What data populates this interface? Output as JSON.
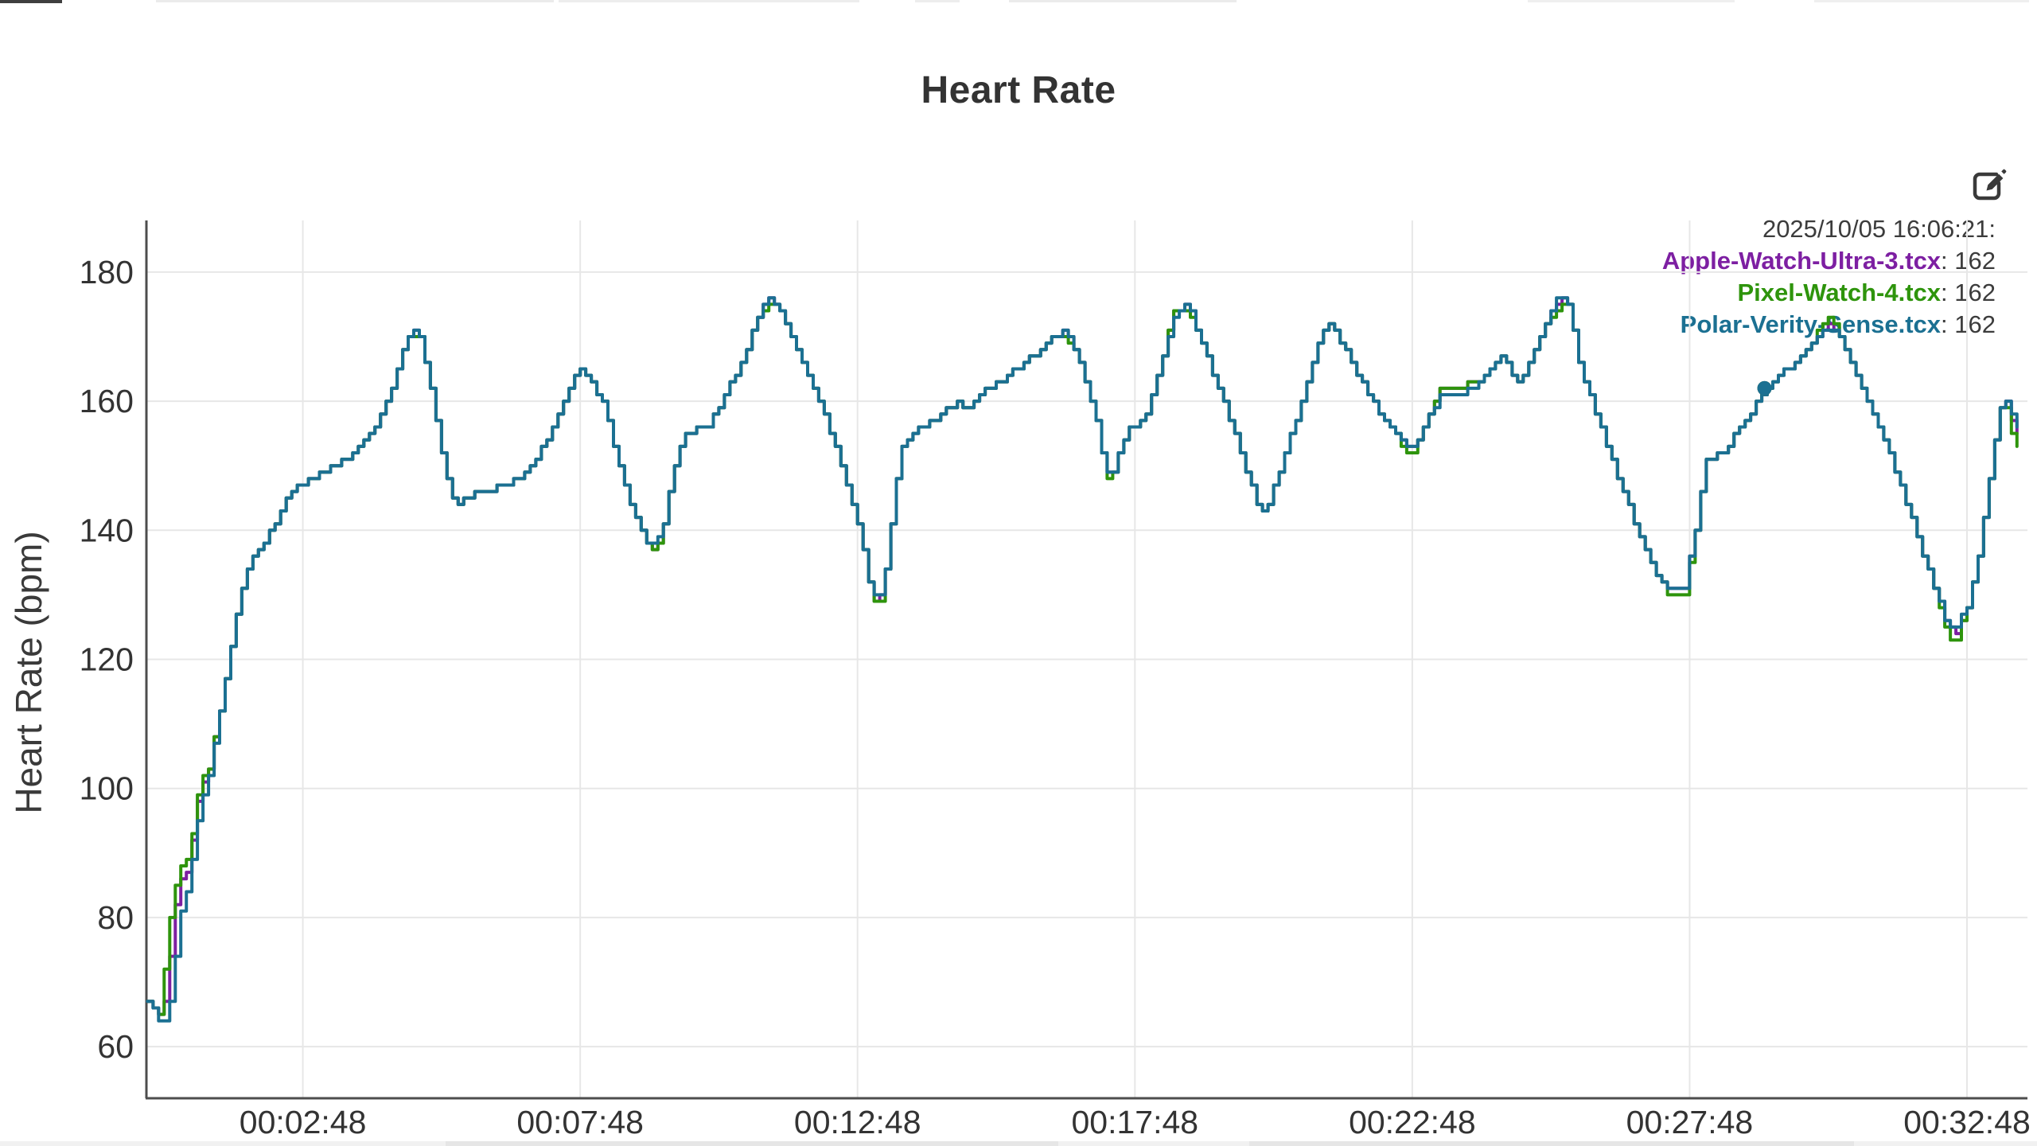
{
  "chart": {
    "title": "Heart Rate",
    "legend": {
      "timestamp": "2025/10/05 16:06:21:",
      "entries": [
        {
          "label": "Apple-Watch-Ultra-3.tcx",
          "value": "162",
          "color": "#7d1fa2"
        },
        {
          "label": "Pixel-Watch-4.tcx",
          "value": "162",
          "color": "#2e940c"
        },
        {
          "label": "Polar-Verity-Sense.tcx",
          "value": "162",
          "color": "#1b7092"
        }
      ],
      "separator": ": "
    },
    "toolbar": {
      "edit_icon": "edit-icon"
    },
    "cursor": {
      "t_seconds": 1749,
      "value": 162,
      "dot_color": "#1b7092"
    }
  },
  "chart_data": {
    "type": "line",
    "title": "Heart Rate",
    "xlabel": "",
    "ylabel": "Heart Rate (bpm)",
    "x_unit": "elapsed time (hh:mm:ss)",
    "y_unit": "bpm",
    "xlim_minutes": [
      -0.02,
      33.89
    ],
    "ylim": [
      52,
      188
    ],
    "grid": true,
    "legend_position": "top-right",
    "y_ticks": [
      180,
      160,
      140,
      120,
      100,
      80,
      60
    ],
    "x_ticks": [
      {
        "label": "00:02:48",
        "minutes": 2.8
      },
      {
        "label": "00:07:48",
        "minutes": 7.8
      },
      {
        "label": "00:12:48",
        "minutes": 12.8
      },
      {
        "label": "00:17:48",
        "minutes": 17.8
      },
      {
        "label": "00:22:48",
        "minutes": 22.8
      },
      {
        "label": "00:27:48",
        "minutes": 27.8
      },
      {
        "label": "00:32:48",
        "minutes": 32.8
      }
    ],
    "x_seconds": [
      0,
      12,
      21,
      27,
      36,
      45,
      51,
      57,
      66,
      78,
      90,
      102,
      114,
      126,
      138,
      150,
      159,
      180,
      192,
      216,
      237,
      252,
      267,
      279,
      285,
      294,
      306,
      318,
      327,
      336,
      348,
      360,
      390,
      402,
      423,
      438,
      456,
      465,
      474,
      492,
      510,
      525,
      540,
      549,
      558,
      570,
      579,
      606,
      624,
      642,
      660,
      669,
      681,
      696,
      720,
      744,
      768,
      783,
      790,
      798,
      813,
      828,
      852,
      876,
      885,
      900,
      924,
      948,
      966,
      981,
      993,
      1008,
      1023,
      1035,
      1041,
      1053,
      1062,
      1077,
      1089,
      1101,
      1110,
      1125,
      1140,
      1158,
      1176,
      1191,
      1203,
      1212,
      1230,
      1248,
      1266,
      1275,
      1287,
      1302,
      1320,
      1338,
      1353,
      1365,
      1380,
      1398,
      1416,
      1437,
      1452,
      1464,
      1476,
      1485,
      1500,
      1512,
      1527,
      1536,
      1548,
      1566,
      1590,
      1614,
      1632,
      1644,
      1662,
      1674,
      1686,
      1704,
      1722,
      1737,
      1749,
      1764,
      1782,
      1800,
      1815,
      1827,
      1842,
      1860,
      1878,
      1896,
      1914,
      1932,
      1947,
      1956,
      1968,
      1980,
      1992,
      2001,
      2007,
      2013,
      2022
    ],
    "series": [
      {
        "name": "Apple-Watch-Ultra-3.tcx",
        "color": "#7d1fa2",
        "values": [
          67,
          65,
          68,
          80,
          86,
          88,
          95,
          100,
          103,
          112,
          122,
          131,
          136,
          138,
          141,
          145,
          147,
          148,
          149,
          151,
          154,
          158,
          163,
          169,
          171,
          170,
          162,
          152,
          146,
          144,
          145,
          146,
          147,
          148,
          152,
          156,
          162,
          165,
          164,
          160,
          150,
          143,
          138,
          137,
          141,
          150,
          155,
          156,
          161,
          166,
          173,
          176,
          175,
          170,
          162,
          153,
          141,
          130,
          128,
          134,
          152,
          155,
          157,
          160,
          159,
          161,
          163,
          166,
          168,
          170,
          171,
          166,
          159,
          149,
          148,
          153,
          156,
          157,
          162,
          169,
          174,
          175,
          169,
          162,
          155,
          148,
          143,
          144,
          152,
          160,
          169,
          172,
          170,
          166,
          161,
          157,
          154,
          152,
          156,
          162,
          162,
          163,
          165,
          167,
          164,
          163,
          168,
          172,
          176,
          175,
          166,
          158,
          148,
          139,
          133,
          131,
          131,
          140,
          151,
          152,
          156,
          159,
          162,
          164,
          166,
          169,
          172,
          171,
          166,
          160,
          154,
          147,
          139,
          131,
          125,
          124,
          128,
          136,
          148,
          157,
          161,
          158,
          155
        ]
      },
      {
        "name": "Pixel-Watch-4.tcx",
        "color": "#2e940c",
        "values": [
          67,
          65,
          75,
          84,
          88,
          90,
          96,
          101,
          103,
          112,
          122,
          131,
          136,
          138,
          141,
          145,
          147,
          148,
          149,
          151,
          154,
          158,
          163,
          170,
          170,
          170,
          162,
          152,
          146,
          144,
          145,
          146,
          147,
          148,
          152,
          156,
          162,
          165,
          164,
          160,
          150,
          143,
          138,
          136,
          141,
          150,
          155,
          156,
          161,
          166,
          173,
          175,
          175,
          170,
          162,
          153,
          141,
          130,
          127,
          134,
          152,
          155,
          157,
          160,
          158,
          161,
          163,
          166,
          168,
          170,
          170,
          166,
          159,
          149,
          147,
          153,
          156,
          157,
          162,
          169,
          174,
          174,
          169,
          162,
          155,
          148,
          142,
          144,
          152,
          160,
          169,
          172,
          170,
          166,
          161,
          157,
          154,
          151,
          156,
          162,
          162,
          163,
          165,
          167,
          164,
          163,
          168,
          172,
          175,
          175,
          166,
          158,
          148,
          139,
          133,
          130,
          130,
          140,
          151,
          152,
          156,
          159,
          162,
          164,
          166,
          169,
          173,
          171,
          166,
          160,
          154,
          147,
          139,
          131,
          123,
          123,
          128,
          136,
          148,
          157,
          161,
          156,
          153
        ]
      },
      {
        "name": "Polar-Verity-Sense.tcx",
        "color": "#1b7092",
        "values": [
          67,
          64,
          64,
          70,
          81,
          86,
          92,
          98,
          102,
          112,
          122,
          131,
          136,
          138,
          141,
          145,
          147,
          148,
          149,
          151,
          154,
          158,
          163,
          169,
          171,
          170,
          162,
          152,
          146,
          144,
          145,
          146,
          147,
          148,
          152,
          156,
          162,
          165,
          164,
          160,
          150,
          143,
          138,
          138,
          141,
          150,
          155,
          156,
          161,
          166,
          173,
          176,
          175,
          170,
          162,
          153,
          141,
          130,
          129,
          134,
          152,
          155,
          157,
          160,
          159,
          161,
          163,
          166,
          168,
          170,
          171,
          166,
          159,
          149,
          148,
          153,
          156,
          157,
          162,
          169,
          173,
          175,
          169,
          162,
          155,
          148,
          143,
          144,
          152,
          160,
          169,
          172,
          170,
          166,
          161,
          157,
          154,
          152,
          156,
          161,
          161,
          162,
          165,
          167,
          164,
          163,
          168,
          172,
          177,
          175,
          166,
          158,
          148,
          139,
          133,
          131,
          131,
          140,
          151,
          152,
          156,
          159,
          162,
          164,
          166,
          169,
          171,
          171,
          166,
          160,
          154,
          147,
          139,
          131,
          125,
          125,
          128,
          136,
          148,
          157,
          160,
          159,
          156
        ]
      }
    ]
  }
}
